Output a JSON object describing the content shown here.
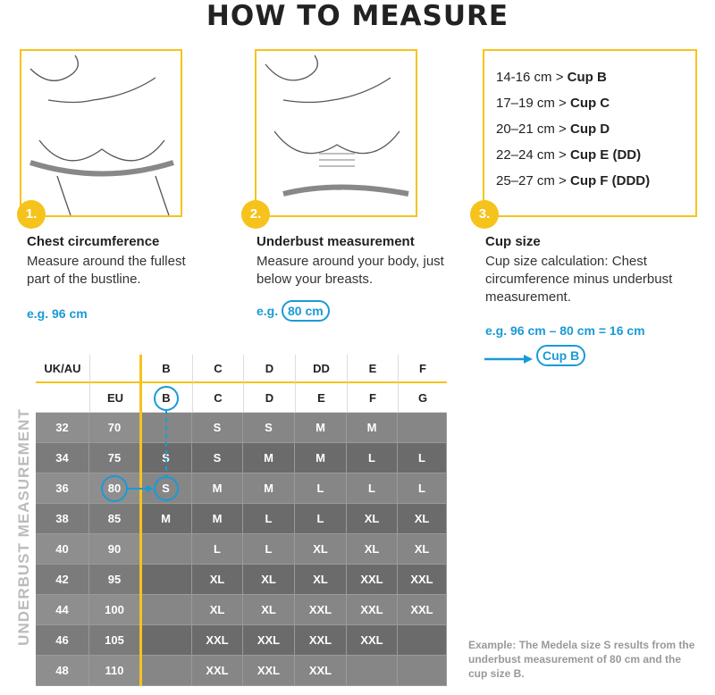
{
  "header": {
    "title": "HOW TO MEASURE"
  },
  "steps": [
    {
      "number": "1.",
      "heading": "Chest circumference",
      "description": "Measure around the fullest part of the bustline.",
      "example": "e.g. 96 cm"
    },
    {
      "number": "2.",
      "heading": "Underbust measurement",
      "description": "Measure around your body, just below your breasts.",
      "example_prefix": "e.g.",
      "example_value": "80 cm"
    },
    {
      "number": "3.",
      "heading": "Cup size",
      "description": "Cup size calculation: Chest circumference minus underbust measurement.",
      "example": "e.g. 96 cm – 80 cm = 16 cm",
      "result": "Cup B"
    }
  ],
  "cup_chart": [
    {
      "range": "14-16 cm >",
      "cup": "Cup B"
    },
    {
      "range": "17–19 cm >",
      "cup": "Cup C"
    },
    {
      "range": "20–21 cm >",
      "cup": "Cup D"
    },
    {
      "range": "22–24 cm >",
      "cup": "Cup E (DD)"
    },
    {
      "range": "25–27 cm >",
      "cup": "Cup F (DDD)"
    }
  ],
  "table": {
    "axis_label": "UNDERBUST MEASUREMENT",
    "header_rows": [
      [
        "UK/AU",
        null,
        "B",
        "C",
        "D",
        "DD",
        "E",
        "F"
      ],
      [
        null,
        "EU",
        "B",
        "C",
        "D",
        "E",
        "F",
        "G"
      ]
    ],
    "rows": [
      [
        32,
        70,
        null,
        "S",
        "S",
        "M",
        "M",
        null
      ],
      [
        34,
        75,
        "S",
        "S",
        "M",
        "M",
        "L",
        "L"
      ],
      [
        36,
        80,
        "S",
        "M",
        "M",
        "L",
        "L",
        "L"
      ],
      [
        38,
        85,
        "M",
        "M",
        "L",
        "L",
        "XL",
        "XL"
      ],
      [
        40,
        90,
        null,
        "L",
        "L",
        "XL",
        "XL",
        "XL"
      ],
      [
        42,
        95,
        null,
        "XL",
        "XL",
        "XL",
        "XXL",
        "XXL"
      ],
      [
        44,
        100,
        null,
        "XL",
        "XL",
        "XXL",
        "XXL",
        "XXL"
      ],
      [
        46,
        105,
        null,
        "XXL",
        "XXL",
        "XXL",
        "XXL",
        null
      ],
      [
        48,
        110,
        null,
        "XXL",
        "XXL",
        "XXL",
        null,
        null
      ]
    ]
  },
  "footnote": "Example: The Medela size S results from the underbust measurement of 80 cm and the cup size B."
}
